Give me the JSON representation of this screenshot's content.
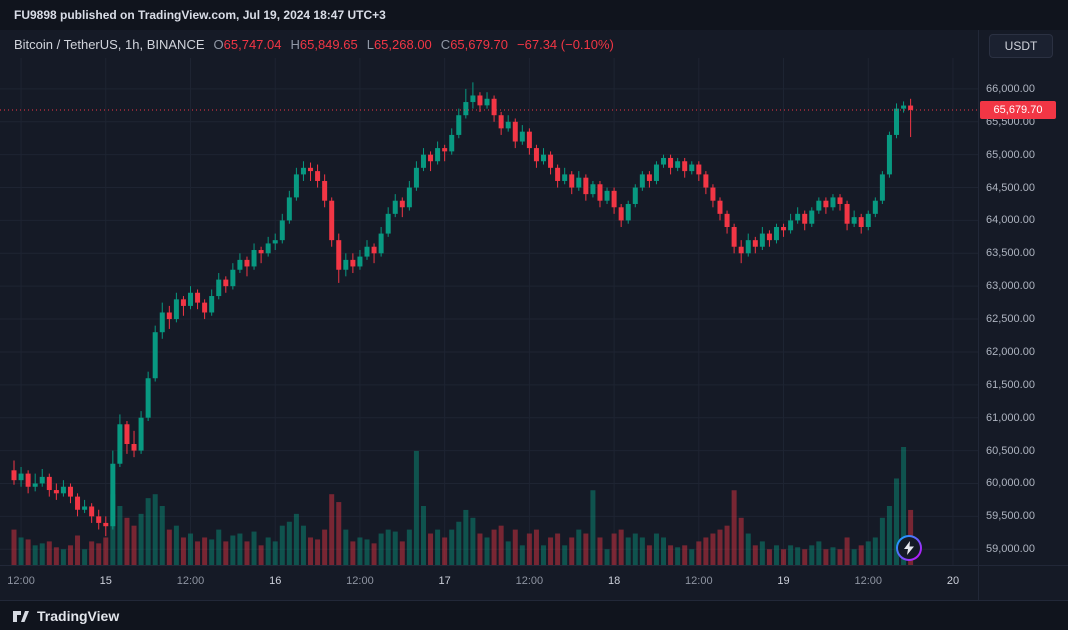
{
  "page": {
    "publish_bar": "FU9898 published on TradingView.com, Jul 19, 2024 18:47 UTC+3",
    "currency_button": "USDT",
    "footer_brand": "TradingView"
  },
  "symbol": {
    "title": "Bitcoin / TetherUS, 1h, BINANCE",
    "o_label": "O",
    "o_value": "65,747.04",
    "h_label": "H",
    "h_value": "65,849.65",
    "l_label": "L",
    "l_value": "65,268.00",
    "c_label": "C",
    "c_value": "65,679.70",
    "change": "−67.34 (−0.10%)"
  },
  "price_axis": {
    "labels": [
      "66,000.00",
      "65,500.00",
      "65,000.00",
      "64,500.00",
      "64,000.00",
      "63,500.00",
      "63,000.00",
      "62,500.00",
      "62,000.00",
      "61,500.00",
      "61,000.00",
      "60,500.00",
      "60,000.00",
      "59,500.00",
      "59,000.00"
    ],
    "last_price_label": "65,679.70"
  },
  "time_axis": {
    "labels": [
      {
        "text": "12:00",
        "index": 1,
        "major": false
      },
      {
        "text": "15",
        "index": 13,
        "major": true
      },
      {
        "text": "12:00",
        "index": 25,
        "major": false
      },
      {
        "text": "16",
        "index": 37,
        "major": true
      },
      {
        "text": "12:00",
        "index": 49,
        "major": false
      },
      {
        "text": "17",
        "index": 61,
        "major": true
      },
      {
        "text": "12:00",
        "index": 73,
        "major": false
      },
      {
        "text": "18",
        "index": 85,
        "major": true
      },
      {
        "text": "12:00",
        "index": 97,
        "major": false
      },
      {
        "text": "19",
        "index": 109,
        "major": true
      },
      {
        "text": "12:00",
        "index": 121,
        "major": false
      },
      {
        "text": "20",
        "index": 133,
        "major": true
      }
    ]
  },
  "colors": {
    "background": "#151a26",
    "grid": "#1e2432",
    "up": "#089981",
    "down": "#f23645",
    "accent_red": "#f23645"
  },
  "chart_data": {
    "type": "candlestick",
    "title": "Bitcoin / TetherUS, 1h, BINANCE",
    "symbol": "BTCUSDT",
    "exchange": "BINANCE",
    "interval": "1h",
    "x_start": "Jul 14 11:00",
    "x_end": "Jul 19 18:00",
    "price_min": 58760,
    "price_max": 66470,
    "ylim_labels": [
      59000,
      66000
    ],
    "grid": true,
    "last_price": 65679.7,
    "last_change": -67.34,
    "last_change_pct": -0.1,
    "up_color": "#089981",
    "down_color": "#f23645",
    "volume_max": 3000,
    "candles_format": [
      "open",
      "high",
      "low",
      "close",
      "volume"
    ],
    "candles": [
      [
        60200,
        60350,
        59980,
        60050,
        900
      ],
      [
        60050,
        60250,
        59950,
        60150,
        700
      ],
      [
        60150,
        60200,
        59850,
        59950,
        650
      ],
      [
        59950,
        60150,
        59880,
        60000,
        500
      ],
      [
        60000,
        60220,
        59950,
        60100,
        550
      ],
      [
        60100,
        60150,
        59800,
        59900,
        600
      ],
      [
        59900,
        60000,
        59750,
        59850,
        450
      ],
      [
        59850,
        60050,
        59800,
        59950,
        400
      ],
      [
        59950,
        60000,
        59700,
        59800,
        500
      ],
      [
        59800,
        59850,
        59500,
        59600,
        750
      ],
      [
        59600,
        59750,
        59550,
        59650,
        400
      ],
      [
        59650,
        59700,
        59400,
        59500,
        600
      ],
      [
        59500,
        59600,
        59300,
        59400,
        550
      ],
      [
        59400,
        59500,
        59200,
        59350,
        700
      ],
      [
        59350,
        60500,
        59300,
        60300,
        1800
      ],
      [
        60300,
        61050,
        60250,
        60900,
        1500
      ],
      [
        60900,
        60950,
        60450,
        60600,
        1200
      ],
      [
        60600,
        60800,
        60400,
        60500,
        1000
      ],
      [
        60500,
        61100,
        60450,
        61000,
        1300
      ],
      [
        61000,
        61700,
        60950,
        61600,
        1700
      ],
      [
        61600,
        62400,
        61550,
        62300,
        1800
      ],
      [
        62300,
        62750,
        62200,
        62600,
        1500
      ],
      [
        62600,
        62700,
        62350,
        62500,
        900
      ],
      [
        62500,
        62900,
        62450,
        62800,
        1000
      ],
      [
        62800,
        62850,
        62550,
        62700,
        700
      ],
      [
        62700,
        63000,
        62650,
        62900,
        800
      ],
      [
        62900,
        62950,
        62650,
        62750,
        600
      ],
      [
        62750,
        62800,
        62500,
        62600,
        700
      ],
      [
        62600,
        62950,
        62550,
        62850,
        650
      ],
      [
        62850,
        63200,
        62800,
        63100,
        900
      ],
      [
        63100,
        63150,
        62900,
        63000,
        600
      ],
      [
        63000,
        63350,
        62950,
        63250,
        750
      ],
      [
        63250,
        63500,
        63200,
        63400,
        800
      ],
      [
        63400,
        63450,
        63150,
        63300,
        600
      ],
      [
        63300,
        63650,
        63250,
        63550,
        850
      ],
      [
        63550,
        63600,
        63350,
        63500,
        500
      ],
      [
        63500,
        63750,
        63450,
        63650,
        700
      ],
      [
        63650,
        63800,
        63550,
        63700,
        600
      ],
      [
        63700,
        64100,
        63650,
        64000,
        1000
      ],
      [
        64000,
        64450,
        63950,
        64350,
        1100
      ],
      [
        64350,
        64800,
        64300,
        64700,
        1300
      ],
      [
        64700,
        64900,
        64600,
        64800,
        1000
      ],
      [
        64800,
        64880,
        64600,
        64750,
        700
      ],
      [
        64750,
        64850,
        64500,
        64600,
        650
      ],
      [
        64600,
        64700,
        64200,
        64300,
        900
      ],
      [
        64300,
        64350,
        63600,
        63700,
        1800
      ],
      [
        63700,
        63800,
        63050,
        63250,
        1600
      ],
      [
        63250,
        63500,
        63150,
        63400,
        900
      ],
      [
        63400,
        63500,
        63200,
        63300,
        600
      ],
      [
        63300,
        63550,
        63250,
        63450,
        700
      ],
      [
        63450,
        63700,
        63400,
        63600,
        650
      ],
      [
        63600,
        63650,
        63350,
        63500,
        550
      ],
      [
        63500,
        63900,
        63450,
        63800,
        800
      ],
      [
        63800,
        64200,
        63750,
        64100,
        900
      ],
      [
        64100,
        64400,
        64050,
        64300,
        850
      ],
      [
        64300,
        64350,
        64050,
        64200,
        600
      ],
      [
        64200,
        64600,
        64150,
        64500,
        900
      ],
      [
        64500,
        64900,
        64450,
        64800,
        2900
      ],
      [
        64800,
        65100,
        64750,
        65000,
        1500
      ],
      [
        65000,
        65050,
        64750,
        64900,
        800
      ],
      [
        64900,
        65200,
        64850,
        65100,
        900
      ],
      [
        65100,
        65150,
        64900,
        65050,
        700
      ],
      [
        65050,
        65400,
        65000,
        65300,
        900
      ],
      [
        65300,
        65700,
        65250,
        65600,
        1100
      ],
      [
        65600,
        66000,
        65550,
        65800,
        1400
      ],
      [
        65800,
        66100,
        65700,
        65900,
        1200
      ],
      [
        65900,
        65950,
        65650,
        65750,
        800
      ],
      [
        65750,
        65950,
        65700,
        65850,
        700
      ],
      [
        65850,
        65900,
        65500,
        65600,
        900
      ],
      [
        65600,
        65650,
        65300,
        65400,
        1000
      ],
      [
        65400,
        65600,
        65350,
        65500,
        600
      ],
      [
        65500,
        65550,
        65100,
        65200,
        900
      ],
      [
        65200,
        65450,
        65150,
        65350,
        500
      ],
      [
        65350,
        65400,
        65000,
        65100,
        800
      ],
      [
        65100,
        65150,
        64800,
        64900,
        900
      ],
      [
        64900,
        65100,
        64850,
        65000,
        500
      ],
      [
        65000,
        65050,
        64700,
        64800,
        700
      ],
      [
        64800,
        64850,
        64500,
        64600,
        800
      ],
      [
        64600,
        64800,
        64550,
        64700,
        500
      ],
      [
        64700,
        64750,
        64400,
        64500,
        700
      ],
      [
        64500,
        64750,
        64450,
        64650,
        900
      ],
      [
        64650,
        64700,
        64300,
        64400,
        800
      ],
      [
        64400,
        64600,
        64350,
        64550,
        1900
      ],
      [
        64550,
        64600,
        64200,
        64300,
        700
      ],
      [
        64300,
        64500,
        64250,
        64450,
        400
      ],
      [
        64450,
        64500,
        64100,
        64200,
        800
      ],
      [
        64200,
        64250,
        63900,
        64000,
        900
      ],
      [
        64000,
        64300,
        63950,
        64250,
        700
      ],
      [
        64250,
        64550,
        64200,
        64500,
        800
      ],
      [
        64500,
        64750,
        64450,
        64700,
        700
      ],
      [
        64700,
        64750,
        64500,
        64600,
        500
      ],
      [
        64600,
        64900,
        64550,
        64850,
        800
      ],
      [
        64850,
        65000,
        64800,
        64950,
        700
      ],
      [
        64950,
        65000,
        64700,
        64800,
        500
      ],
      [
        64800,
        64950,
        64750,
        64900,
        450
      ],
      [
        64900,
        64950,
        64650,
        64750,
        500
      ],
      [
        64750,
        64900,
        64700,
        64850,
        400
      ],
      [
        64850,
        64900,
        64600,
        64700,
        600
      ],
      [
        64700,
        64750,
        64400,
        64500,
        700
      ],
      [
        64500,
        64550,
        64200,
        64300,
        800
      ],
      [
        64300,
        64350,
        64000,
        64100,
        900
      ],
      [
        64100,
        64150,
        63800,
        63900,
        1000
      ],
      [
        63900,
        63950,
        63500,
        63600,
        1900
      ],
      [
        63600,
        63700,
        63350,
        63500,
        1200
      ],
      [
        63500,
        63800,
        63450,
        63700,
        800
      ],
      [
        63700,
        63750,
        63500,
        63600,
        500
      ],
      [
        63600,
        63900,
        63550,
        63800,
        600
      ],
      [
        63800,
        63850,
        63600,
        63700,
        400
      ],
      [
        63700,
        63950,
        63650,
        63900,
        500
      ],
      [
        63900,
        63950,
        63750,
        63850,
        400
      ],
      [
        63850,
        64100,
        63800,
        64000,
        500
      ],
      [
        64000,
        64200,
        63950,
        64100,
        450
      ],
      [
        64100,
        64150,
        63850,
        63950,
        400
      ],
      [
        63950,
        64200,
        63900,
        64150,
        500
      ],
      [
        64150,
        64350,
        64100,
        64300,
        600
      ],
      [
        64300,
        64350,
        64100,
        64200,
        400
      ],
      [
        64200,
        64400,
        64150,
        64350,
        450
      ],
      [
        64350,
        64400,
        64150,
        64250,
        400
      ],
      [
        64250,
        64300,
        63850,
        63950,
        700
      ],
      [
        63950,
        64150,
        63900,
        64050,
        400
      ],
      [
        64050,
        64100,
        63800,
        63900,
        500
      ],
      [
        63900,
        64150,
        63850,
        64100,
        600
      ],
      [
        64100,
        64350,
        64050,
        64300,
        700
      ],
      [
        64300,
        64750,
        64250,
        64700,
        1200
      ],
      [
        64700,
        65350,
        64650,
        65300,
        1500
      ],
      [
        65300,
        65780,
        65250,
        65700,
        2200
      ],
      [
        65700,
        65810,
        65640,
        65747,
        3000
      ],
      [
        65747.04,
        65849.65,
        65268.0,
        65679.7,
        1400
      ]
    ]
  }
}
